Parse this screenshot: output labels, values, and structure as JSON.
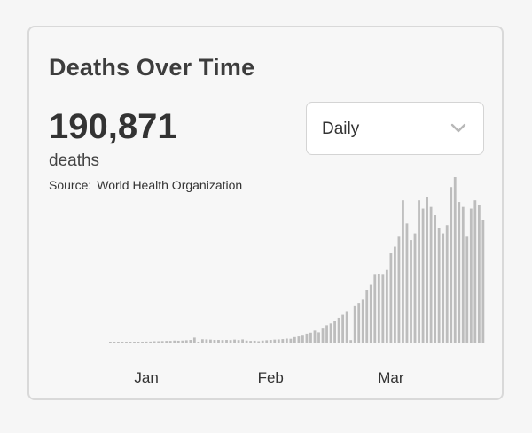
{
  "card": {
    "title": "Deaths Over Time",
    "total": "190,871",
    "unit": "deaths",
    "source_label": "Source:",
    "source_name": "World Health Organization"
  },
  "dropdown": {
    "selected": "Daily",
    "icon": "chevron-down-icon"
  },
  "colors": {
    "bar": "#bdbdbd",
    "text": "#333333",
    "border": "#d9d9d9"
  },
  "chart_data": {
    "type": "bar",
    "xlabel": "",
    "ylabel": "",
    "grid": false,
    "x_ticks": [
      {
        "label": "Jan",
        "index": 9
      },
      {
        "label": "Feb",
        "index": 40
      },
      {
        "label": "Mar",
        "index": 70
      }
    ],
    "values": [
      0.1,
      0.1,
      0.1,
      0.2,
      0.3,
      0.3,
      0.4,
      0.5,
      0.5,
      0.6,
      0.6,
      0.8,
      0.8,
      0.9,
      1.0,
      1.0,
      1.2,
      1.1,
      1.2,
      1.4,
      1.6,
      3.0,
      0.4,
      2.0,
      1.9,
      1.8,
      1.6,
      1.6,
      1.5,
      1.6,
      1.5,
      1.8,
      1.5,
      1.9,
      1.2,
      1.0,
      1.1,
      0.8,
      1.2,
      1.4,
      1.6,
      1.8,
      1.9,
      2.1,
      2.4,
      2.3,
      3.3,
      3.7,
      4.7,
      5.4,
      6.0,
      7.3,
      6.2,
      9.0,
      10.5,
      11.6,
      13.0,
      15.0,
      16.8,
      19.0,
      1.5,
      22.0,
      24.0,
      26.0,
      32.0,
      35.0,
      41.0,
      41.5,
      41.0,
      44.0,
      54.0,
      58.0,
      64.0,
      86.0,
      72.0,
      62.0,
      66.0,
      86.0,
      81.0,
      88.0,
      82.0,
      77.0,
      69.0,
      66.0,
      71.0,
      94.0,
      100.0,
      85.0,
      82.0,
      64.0,
      81.0,
      86.0,
      83.0,
      74.0
    ]
  }
}
